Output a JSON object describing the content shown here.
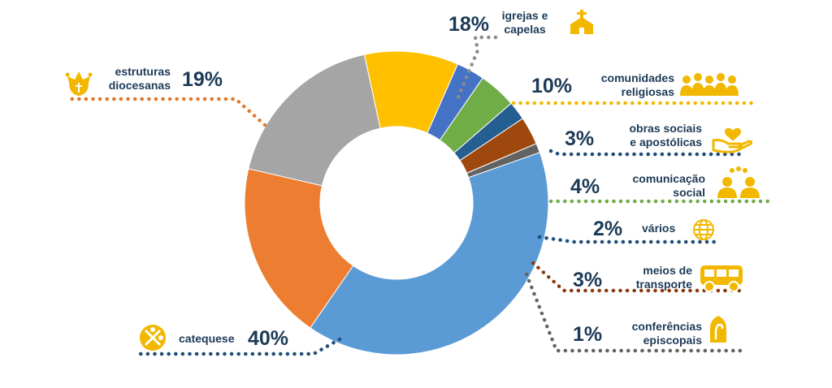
{
  "chart_data": {
    "type": "pie",
    "title": "",
    "donut": true,
    "series": [
      {
        "name": "igrejas e capelas",
        "label_lines": [
          "igrejas e",
          "capelas"
        ],
        "value": 18,
        "value_label": "18%",
        "color": "#a5a5a5",
        "leader_color": "#8c8c8c",
        "icon": "church-icon"
      },
      {
        "name": "comunidades religiosas",
        "label_lines": [
          "comunidades",
          "religiosas"
        ],
        "value": 10,
        "value_label": "10%",
        "color": "#ffc000",
        "leader_color": "#f2b800",
        "icon": "people-group-icon"
      },
      {
        "name": "obras sociais e apostólicas",
        "label_lines": [
          "obras sociais",
          "e apostólicas"
        ],
        "value": 3,
        "value_label": "3%",
        "color": "#4472c4",
        "leader_color": "#1f4e79",
        "icon": "hand-heart-icon"
      },
      {
        "name": "comunicação social",
        "label_lines": [
          "comunicação",
          "social"
        ],
        "value": 4,
        "value_label": "4%",
        "color": "#70ad47",
        "leader_color": "#70ad47",
        "icon": "communication-people-icon"
      },
      {
        "name": "vários",
        "label_lines": [
          "vários"
        ],
        "value": 2,
        "value_label": "2%",
        "color": "#255e91",
        "leader_color": "#1f4e79",
        "icon": "globe-icon"
      },
      {
        "name": "meios de transporte",
        "label_lines": [
          "meios de",
          "transporte"
        ],
        "value": 3,
        "value_label": "3%",
        "color": "#9e480e",
        "leader_color": "#8b3a0e",
        "icon": "bus-icon"
      },
      {
        "name": "conferências episcopais",
        "label_lines": [
          "conferências",
          "episcopais"
        ],
        "value": 1,
        "value_label": "1%",
        "color": "#636363",
        "leader_color": "#636363",
        "icon": "mitre-icon"
      },
      {
        "name": "catequese",
        "label_lines": [
          "catequese"
        ],
        "value": 40,
        "value_label": "40%",
        "color": "#5b9bd5",
        "leader_color": "#1f4e79",
        "icon": "catechesis-icon"
      },
      {
        "name": "estruturas diocesanas",
        "label_lines": [
          "estruturas",
          "diocesanas"
        ],
        "value": 19,
        "value_label": "19%",
        "color": "#ed7d31",
        "leader_color": "#e07a2e",
        "icon": "diocese-icon"
      }
    ],
    "icon_color": "#f2b800"
  }
}
